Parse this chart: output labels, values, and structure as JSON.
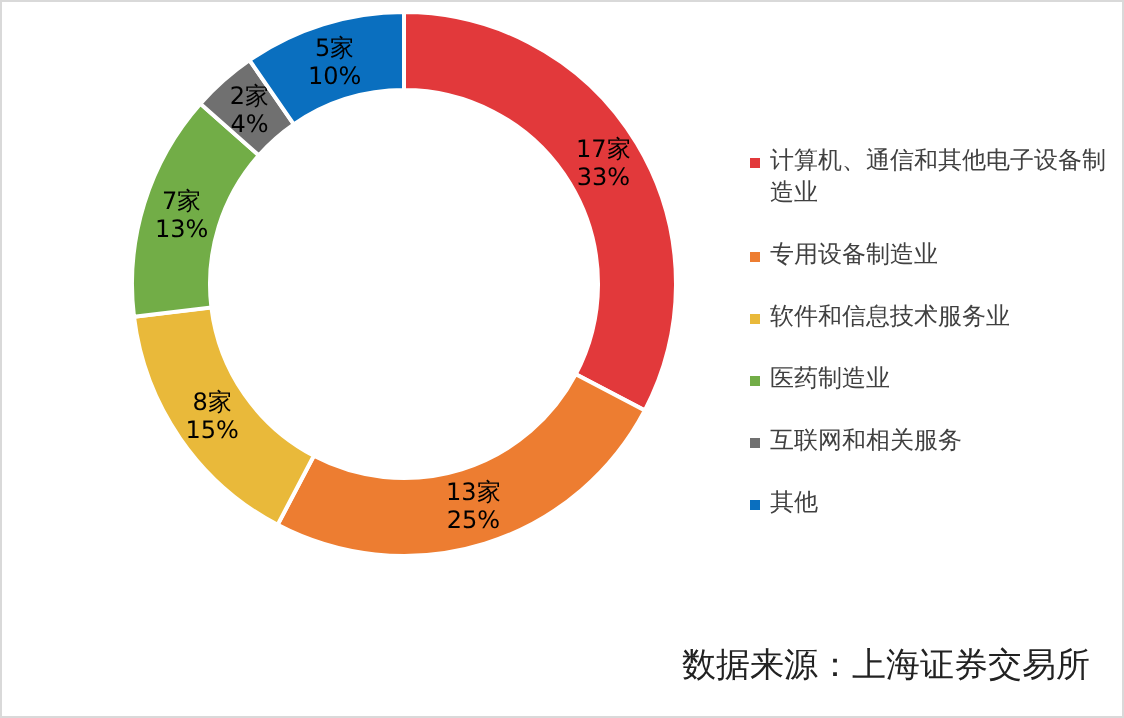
{
  "chart_data": {
    "type": "donut",
    "categories": [
      "计算机、通信和其他电子设备制造业",
      "专用设备制造业",
      "软件和信息技术服务业",
      "医药制造业",
      "互联网和相关服务",
      "其他"
    ],
    "values": [
      17,
      13,
      8,
      7,
      2,
      5
    ],
    "value_labels": [
      "17家 33%",
      "13家 25%",
      "8家 15%",
      "7家 13%",
      "2家 4%",
      "5家 10%"
    ],
    "colors": [
      "#e2393b",
      "#ed7d31",
      "#e9b93a",
      "#72ad47",
      "#707070",
      "#0a6fbf"
    ],
    "legend": "right",
    "annotations": [
      "数据来源：上海证券交易所"
    ]
  }
}
